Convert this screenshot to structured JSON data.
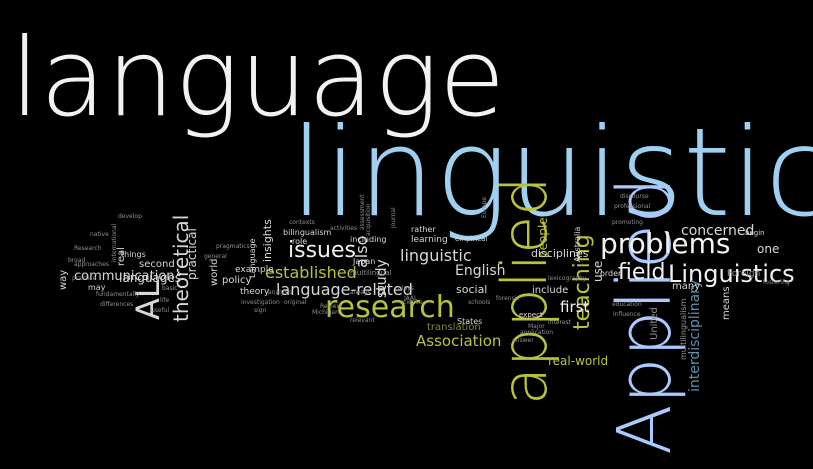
{
  "colors": {
    "background": "#000000",
    "white": "#f2f2f2",
    "blue": "#9fd0f0",
    "olive": "#b8c23a",
    "light_blue": "#a9c9ff",
    "gray": "#d7d7d7",
    "dim_gray": "#8f8f8f",
    "dim_blue": "#5f8fb0",
    "dim_olive": "#7f8a2f"
  },
  "words": [
    {
      "text": "language",
      "color": "white",
      "size": 108
    },
    {
      "text": "linguistics",
      "color": "blue",
      "size": 122
    },
    {
      "text": "applied",
      "color": "olive",
      "size": 62
    },
    {
      "text": "Applied",
      "color": "light_blue",
      "size": 74
    },
    {
      "text": "problems",
      "color": "white",
      "size": 28
    },
    {
      "text": "research",
      "color": "olive",
      "size": 30
    },
    {
      "text": "Linguistics",
      "color": "white",
      "size": 24
    },
    {
      "text": "field",
      "color": "white",
      "size": 22
    },
    {
      "text": "teaching",
      "color": "olive",
      "size": 22
    },
    {
      "text": "AL",
      "color": "gray",
      "size": 32
    },
    {
      "text": "issues",
      "color": "white",
      "size": 22
    },
    {
      "text": "theoretical",
      "color": "gray",
      "size": 20
    },
    {
      "text": "established",
      "color": "olive",
      "size": 16
    },
    {
      "text": "language-related",
      "color": "gray",
      "size": 16
    },
    {
      "text": "concerned",
      "color": "gray",
      "size": 14
    },
    {
      "text": "interdisciplinary",
      "color": "dim_blue",
      "size": 14
    },
    {
      "text": "study",
      "color": "gray",
      "size": 14
    },
    {
      "text": "also",
      "color": "gray",
      "size": 16
    },
    {
      "text": "linguistic",
      "color": "gray",
      "size": 16
    },
    {
      "text": "communication",
      "color": "gray",
      "size": 13
    },
    {
      "text": "Association",
      "color": "olive",
      "size": 15
    },
    {
      "text": "English",
      "color": "gray",
      "size": 14
    },
    {
      "text": "social",
      "color": "gray",
      "size": 11
    },
    {
      "text": "first",
      "color": "white",
      "size": 15
    },
    {
      "text": "include",
      "color": "gray",
      "size": 10
    },
    {
      "text": "real-world",
      "color": "olive",
      "size": 12
    },
    {
      "text": "translation",
      "color": "dim_olive",
      "size": 10
    },
    {
      "text": "people",
      "color": "olive",
      "size": 12
    },
    {
      "text": "disciplines",
      "color": "gray",
      "size": 11
    },
    {
      "text": "practical",
      "color": "gray",
      "size": 12
    },
    {
      "text": "languages",
      "color": "gray",
      "size": 12
    },
    {
      "text": "second",
      "color": "gray",
      "size": 10
    },
    {
      "text": "policy",
      "color": "gray",
      "size": 10
    },
    {
      "text": "many",
      "color": "gray",
      "size": 10
    },
    {
      "text": "means",
      "color": "gray",
      "size": 10
    },
    {
      "text": "one",
      "color": "gray",
      "size": 12
    },
    {
      "text": "use",
      "color": "gray",
      "size": 12
    },
    {
      "text": "United",
      "color": "dim_gray",
      "size": 10
    },
    {
      "text": "learning",
      "color": "gray",
      "size": 9
    },
    {
      "text": "rather",
      "color": "gray",
      "size": 8
    },
    {
      "text": "insights",
      "color": "gray",
      "size": 11
    },
    {
      "text": "way",
      "color": "gray",
      "size": 10
    },
    {
      "text": "real",
      "color": "gray",
      "size": 10
    },
    {
      "text": "Foreign",
      "color": "dim_gray",
      "size": 9
    },
    {
      "text": "order",
      "color": "gray",
      "size": 8
    },
    {
      "text": "multilingualism",
      "color": "dim_gray",
      "size": 8
    },
    {
      "text": "theory",
      "color": "gray",
      "size": 9
    },
    {
      "text": "example",
      "color": "gray",
      "size": 9
    },
    {
      "text": "world",
      "color": "gray",
      "size": 10
    },
    {
      "text": "Australia",
      "color": "gray",
      "size": 8
    },
    {
      "text": "States",
      "color": "gray",
      "size": 8
    },
    {
      "text": "Japan",
      "color": "gray",
      "size": 8
    },
    {
      "text": "bilingualism",
      "color": "gray",
      "size": 8
    },
    {
      "text": "things",
      "color": "gray",
      "size": 8
    },
    {
      "text": "may",
      "color": "gray",
      "size": 8
    },
    {
      "text": "Language",
      "color": "gray",
      "size": 8
    },
    {
      "text": "including",
      "color": "gray",
      "size": 8
    },
    {
      "text": "role",
      "color": "gray",
      "size": 8
    },
    {
      "text": "empirical",
      "color": "gray",
      "size": 7
    },
    {
      "text": "multilingual",
      "color": "dim_gray",
      "size": 7
    },
    {
      "text": "begin",
      "color": "gray",
      "size": 7
    },
    {
      "text": "expect",
      "color": "gray",
      "size": 7
    },
    {
      "text": "fundamentally",
      "color": "dim_gray",
      "size": 6
    },
    {
      "text": "differences",
      "color": "dim_gray",
      "size": 6
    },
    {
      "text": "international",
      "color": "dim_gray",
      "size": 6
    },
    {
      "text": "develop",
      "color": "dim_gray",
      "size": 6
    },
    {
      "text": "native",
      "color": "dim_gray",
      "size": 6
    },
    {
      "text": "Major",
      "color": "dim_gray",
      "size": 6
    },
    {
      "text": "JAAL",
      "color": "dim_gray",
      "size": 6
    },
    {
      "text": "promoting",
      "color": "dim_gray",
      "size": 6
    },
    {
      "text": "fostering",
      "color": "dim_gray",
      "size": 6
    },
    {
      "text": "influence",
      "color": "dim_gray",
      "size": 6
    },
    {
      "text": "education",
      "color": "dim_gray",
      "size": 6
    },
    {
      "text": "professional",
      "color": "dim_gray",
      "size": 6
    },
    {
      "text": "application",
      "color": "dim_gray",
      "size": 6
    },
    {
      "text": "interest",
      "color": "dim_gray",
      "size": 6
    },
    {
      "text": "science",
      "color": "dim_gray",
      "size": 6
    },
    {
      "text": "discourse",
      "color": "dim_gray",
      "size": 6
    },
    {
      "text": "Europe",
      "color": "dim_gray",
      "size": 6
    },
    {
      "text": "journal",
      "color": "dim_gray",
      "size": 6
    },
    {
      "text": "plays",
      "color": "dim_gray",
      "size": 6
    },
    {
      "text": "acquisition",
      "color": "dim_gray",
      "size": 6
    },
    {
      "text": "assessment",
      "color": "dim_gray",
      "size": 6
    },
    {
      "text": "lexicography",
      "color": "dim_gray",
      "size": 6
    },
    {
      "text": "forensic",
      "color": "dim_gray",
      "size": 6
    },
    {
      "text": "general",
      "color": "dim_gray",
      "size": 6
    },
    {
      "text": "pragmatics",
      "color": "dim_gray",
      "size": 6
    },
    {
      "text": "analysis",
      "color": "dim_gray",
      "size": 6
    },
    {
      "text": "contexts",
      "color": "dim_gray",
      "size": 6
    },
    {
      "text": "activities",
      "color": "dim_gray",
      "size": 6
    },
    {
      "text": "answer",
      "color": "dim_gray",
      "size": 6
    },
    {
      "text": "Research",
      "color": "dim_gray",
      "size": 6
    },
    {
      "text": "broad",
      "color": "dim_gray",
      "size": 6
    },
    {
      "text": "practice",
      "color": "dim_gray",
      "size": 6
    },
    {
      "text": "approaches",
      "color": "dim_gray",
      "size": 6
    },
    {
      "text": "investigation",
      "color": "dim_gray",
      "size": 6
    },
    {
      "text": "original",
      "color": "dim_gray",
      "size": 6
    },
    {
      "text": "Review",
      "color": "dim_gray",
      "size": 6
    },
    {
      "text": "schools",
      "color": "dim_gray",
      "size": 6
    },
    {
      "text": "always",
      "color": "dim_gray",
      "size": 6
    },
    {
      "text": "relevant",
      "color": "dim_gray",
      "size": 6
    },
    {
      "text": "sign",
      "color": "dim_gray",
      "size": 6
    },
    {
      "text": "basic",
      "color": "dim_gray",
      "size": 6
    },
    {
      "text": "life",
      "color": "dim_gray",
      "size": 6
    },
    {
      "text": "useful",
      "color": "dim_gray",
      "size": 6
    },
    {
      "text": "Michigan",
      "color": "dim_gray",
      "size": 6
    }
  ]
}
